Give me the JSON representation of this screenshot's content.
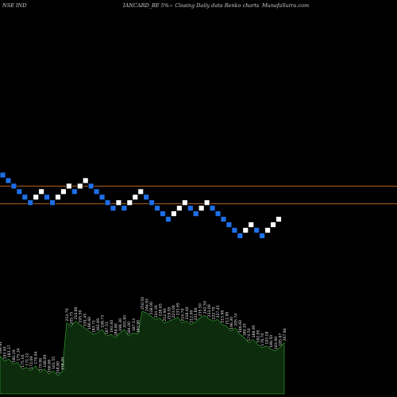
{
  "header": {
    "left": "NSE IND",
    "center": "IANCARD_BE 5%~  Closing Daily data  Renko  charts",
    "right": "MunafaSutra.com"
  },
  "colors": {
    "background": "#000000",
    "up_brick": "#ffffff",
    "down_brick": "#1e6fe8",
    "brick_border": "#000000",
    "level_line": "#b5651d",
    "volume_fill": "#0d2b0d",
    "volume_stroke": "#2e8b2e",
    "label_text": "#e8e8e8"
  },
  "chart_data": {
    "type": "renko",
    "bricks": [
      {
        "dir": "down",
        "level": 0
      },
      {
        "dir": "down",
        "level": -1
      },
      {
        "dir": "down",
        "level": -2
      },
      {
        "dir": "down",
        "level": -3
      },
      {
        "dir": "down",
        "level": -4
      },
      {
        "dir": "down",
        "level": -5
      },
      {
        "dir": "up",
        "level": -4
      },
      {
        "dir": "up",
        "level": -3
      },
      {
        "dir": "down",
        "level": -4
      },
      {
        "dir": "down",
        "level": -5
      },
      {
        "dir": "up",
        "level": -4
      },
      {
        "dir": "up",
        "level": -3
      },
      {
        "dir": "up",
        "level": -2
      },
      {
        "dir": "down",
        "level": -3
      },
      {
        "dir": "up",
        "level": -2
      },
      {
        "dir": "up",
        "level": -1
      },
      {
        "dir": "down",
        "level": -2
      },
      {
        "dir": "down",
        "level": -3
      },
      {
        "dir": "down",
        "level": -4
      },
      {
        "dir": "down",
        "level": -5
      },
      {
        "dir": "down",
        "level": -6
      },
      {
        "dir": "up",
        "level": -5
      },
      {
        "dir": "down",
        "level": -6
      },
      {
        "dir": "up",
        "level": -5
      },
      {
        "dir": "up",
        "level": -4
      },
      {
        "dir": "up",
        "level": -3
      },
      {
        "dir": "down",
        "level": -4
      },
      {
        "dir": "down",
        "level": -5
      },
      {
        "dir": "down",
        "level": -6
      },
      {
        "dir": "down",
        "level": -7
      },
      {
        "dir": "down",
        "level": -8
      },
      {
        "dir": "up",
        "level": -7
      },
      {
        "dir": "up",
        "level": -6
      },
      {
        "dir": "up",
        "level": -5
      },
      {
        "dir": "down",
        "level": -6
      },
      {
        "dir": "down",
        "level": -7
      },
      {
        "dir": "up",
        "level": -6
      },
      {
        "dir": "up",
        "level": -5
      },
      {
        "dir": "down",
        "level": -6
      },
      {
        "dir": "down",
        "level": -7
      },
      {
        "dir": "down",
        "level": -8
      },
      {
        "dir": "down",
        "level": -9
      },
      {
        "dir": "down",
        "level": -10
      },
      {
        "dir": "down",
        "level": -11
      },
      {
        "dir": "up",
        "level": -10
      },
      {
        "dir": "up",
        "level": -9
      },
      {
        "dir": "down",
        "level": -10
      },
      {
        "dir": "down",
        "level": -11
      },
      {
        "dir": "up",
        "level": -10
      },
      {
        "dir": "up",
        "level": -9
      },
      {
        "dir": "up",
        "level": -8
      }
    ],
    "level_lines": [
      {
        "level": -2
      },
      {
        "level": -5.2
      }
    ],
    "volume_labels": [
      "196.91",
      "193.93",
      "183.37",
      "180.19",
      "175.34",
      "175.10",
      "171.12",
      "172.09",
      "176.04",
      "170.99",
      "168.69",
      "166.68",
      "161.55",
      "158.80",
      "158.00",
      "214.70",
      "205.75",
      "210.80",
      "195.50",
      "191.45",
      "186.60",
      "183.71",
      "182.89",
      "198.73",
      "187.51",
      "193.40",
      "189.80",
      "196.30",
      "201.65",
      "184.00",
      "187.13",
      "183.90",
      "250.50",
      "246.93",
      "238.00",
      "224.30",
      "228.65",
      "212.90",
      "219.05",
      "223.00",
      "231.65",
      "214.70",
      "218.40",
      "212.00",
      "221.80",
      "235.50",
      "242.50",
      "233.00",
      "222.70",
      "227.45",
      "215.90",
      "212.90",
      "196.30",
      "205.74",
      "186.60",
      "180.25",
      "174.50",
      "188.95",
      "182.95",
      "178.70",
      "193.18",
      "186.50",
      "183.90",
      "185.67",
      "207.94"
    ],
    "volume_heights": [
      0.46,
      0.4,
      0.42,
      0.36,
      0.38,
      0.3,
      0.32,
      0.28,
      0.34,
      0.26,
      0.3,
      0.24,
      0.28,
      0.22,
      0.27,
      0.86,
      0.82,
      0.88,
      0.84,
      0.8,
      0.76,
      0.72,
      0.74,
      0.78,
      0.7,
      0.72,
      0.68,
      0.74,
      0.78,
      0.7,
      0.74,
      0.72,
      1.0,
      0.98,
      0.94,
      0.9,
      0.92,
      0.86,
      0.88,
      0.9,
      0.93,
      0.86,
      0.88,
      0.84,
      0.87,
      0.92,
      0.95,
      0.91,
      0.88,
      0.9,
      0.84,
      0.82,
      0.76,
      0.8,
      0.72,
      0.68,
      0.62,
      0.66,
      0.6,
      0.56,
      0.58,
      0.54,
      0.52,
      0.56,
      0.62
    ]
  }
}
